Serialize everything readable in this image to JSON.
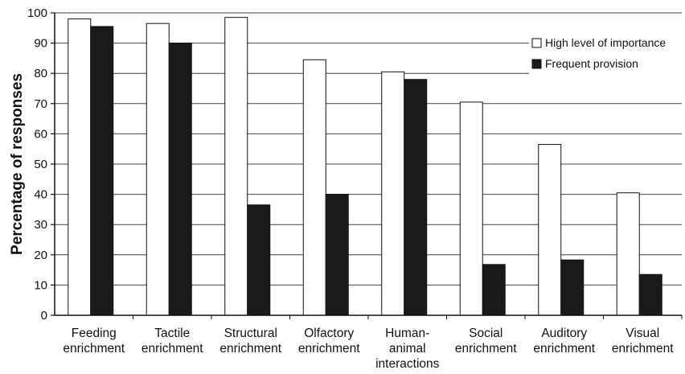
{
  "chart_data": {
    "type": "bar",
    "title": "",
    "xlabel": "",
    "ylabel": "Percentage of responses",
    "ylim": [
      0,
      100
    ],
    "yticks": [
      0,
      10,
      20,
      30,
      40,
      50,
      60,
      70,
      80,
      90,
      100
    ],
    "categories": [
      [
        "Feeding",
        "enrichment"
      ],
      [
        "Tactile",
        "enrichment"
      ],
      [
        "Structural",
        "enrichment"
      ],
      [
        "Olfactory",
        "enrichment"
      ],
      [
        "Human-",
        "animal",
        "interactions"
      ],
      [
        "Social",
        "enrichment"
      ],
      [
        "Auditory",
        "enrichment"
      ],
      [
        "Visual",
        "enrichment"
      ]
    ],
    "series": [
      {
        "name": "High level of importance",
        "color": "#ffffff",
        "values": [
          98,
          96.5,
          98.5,
          84.5,
          80.5,
          70.5,
          56.5,
          40.5
        ]
      },
      {
        "name": "Frequent provision",
        "color": "#1a1a1a",
        "values": [
          95.5,
          90,
          36.5,
          40,
          78,
          16.8,
          18.3,
          13.5
        ]
      }
    ],
    "grid": "horizontal",
    "legend_position": "top-right"
  }
}
